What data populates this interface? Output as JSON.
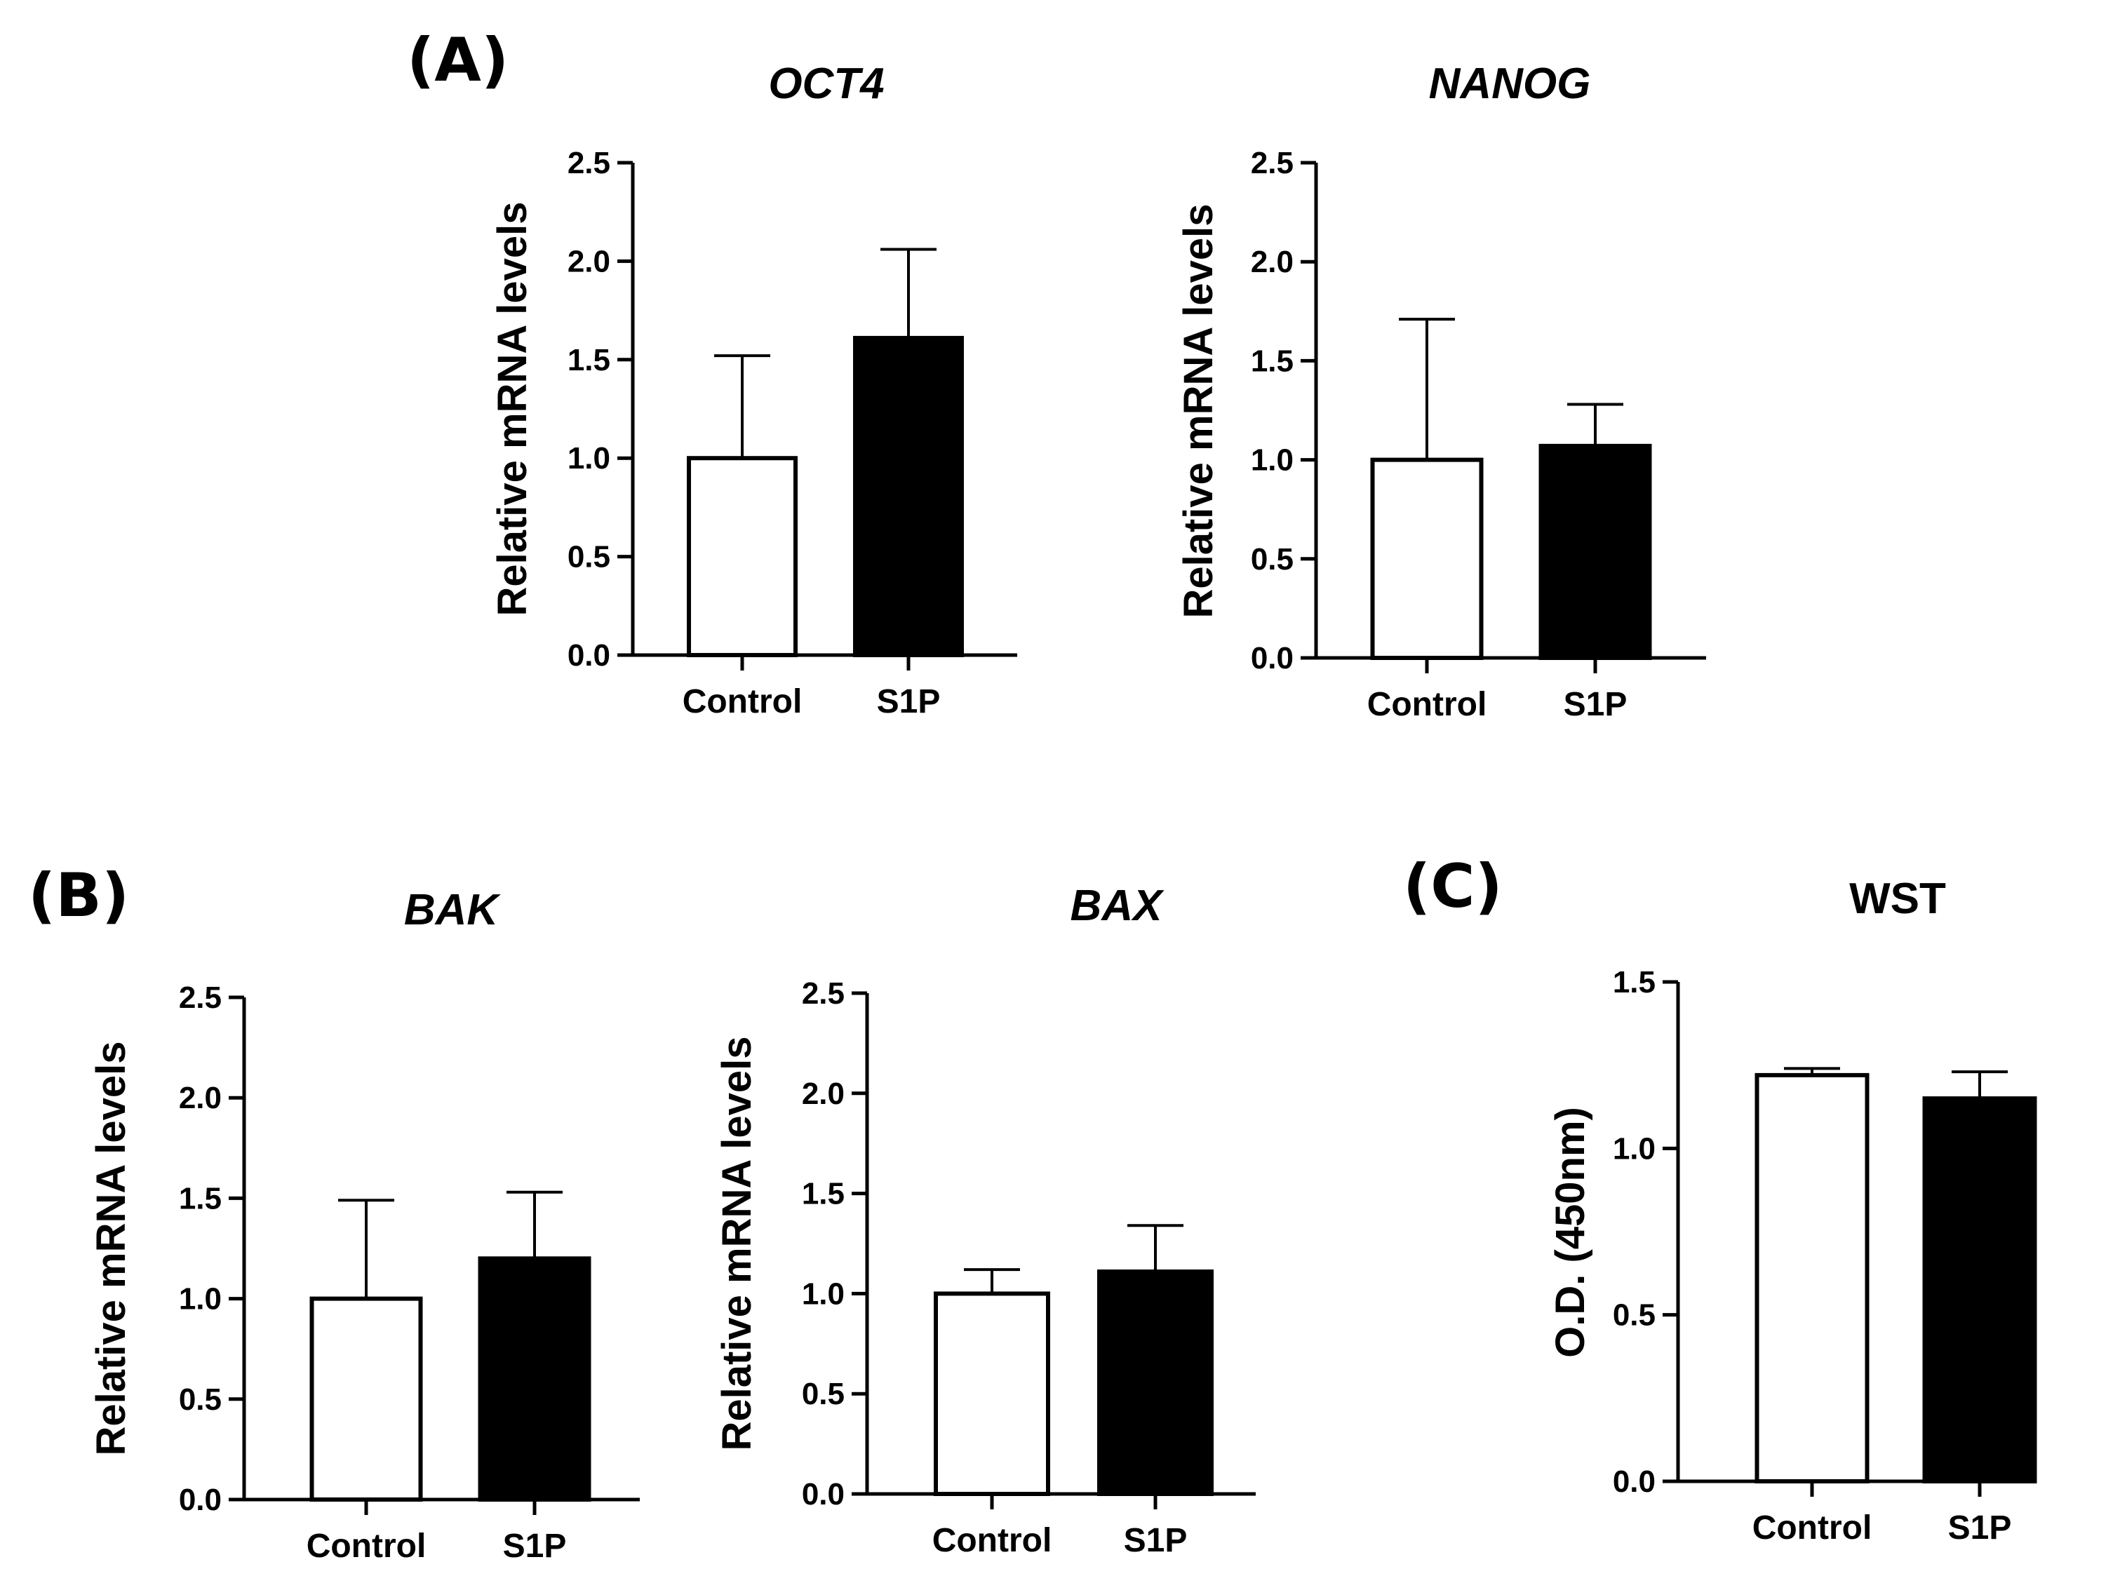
{
  "chart_data": [
    {
      "panel_label": "(A)",
      "type": "bar",
      "title": "OCT4",
      "title_style": "italic",
      "ylabel": "Relative mRNA levels",
      "xlabel": "",
      "categories": [
        "Control",
        "S1P"
      ],
      "values": [
        1.0,
        1.61
      ],
      "errors": [
        0.52,
        0.45
      ],
      "bar_fill": [
        "#ffffff",
        "#000000"
      ],
      "ylim": [
        0,
        2.5
      ],
      "yticks": [
        "0.0",
        "0.5",
        "1.0",
        "1.5",
        "2.0",
        "2.5"
      ],
      "grid": false
    },
    {
      "panel_label": "",
      "type": "bar",
      "title": "NANOG",
      "title_style": "italic",
      "ylabel": "Relative mRNA levels",
      "xlabel": "",
      "categories": [
        "Control",
        "S1P"
      ],
      "values": [
        1.0,
        1.07
      ],
      "errors": [
        0.71,
        0.21
      ],
      "bar_fill": [
        "#ffffff",
        "#000000"
      ],
      "ylim": [
        0,
        2.5
      ],
      "yticks": [
        "0.0",
        "0.5",
        "1.0",
        "1.5",
        "2.0",
        "2.5"
      ],
      "grid": false
    },
    {
      "panel_label": "(B)",
      "type": "bar",
      "title": "BAK",
      "title_style": "italic",
      "ylabel": "Relative mRNA levels",
      "xlabel": "",
      "categories": [
        "Control",
        "S1P"
      ],
      "values": [
        1.0,
        1.2
      ],
      "errors": [
        0.49,
        0.33
      ],
      "bar_fill": [
        "#ffffff",
        "#000000"
      ],
      "ylim": [
        0,
        2.5
      ],
      "yticks": [
        "0.0",
        "0.5",
        "1.0",
        "1.5",
        "2.0",
        "2.5"
      ],
      "grid": false
    },
    {
      "panel_label": "",
      "type": "bar",
      "title": "BAX",
      "title_style": "italic",
      "ylabel": "Relative mRNA levels",
      "xlabel": "",
      "categories": [
        "Control",
        "S1P"
      ],
      "values": [
        1.0,
        1.11
      ],
      "errors": [
        0.12,
        0.23
      ],
      "bar_fill": [
        "#ffffff",
        "#000000"
      ],
      "ylim": [
        0,
        2.5
      ],
      "yticks": [
        "0.0",
        "0.5",
        "1.0",
        "1.5",
        "2.0",
        "2.5"
      ],
      "grid": false
    },
    {
      "panel_label": "(C)",
      "type": "bar",
      "title": "WST",
      "title_style": "normal",
      "ylabel": "O.D. (450nm)",
      "xlabel": "",
      "categories": [
        "Control",
        "S1P"
      ],
      "values": [
        1.22,
        1.15
      ],
      "errors": [
        0.02,
        0.08
      ],
      "bar_fill": [
        "#ffffff",
        "#000000"
      ],
      "ylim": [
        0,
        1.5
      ],
      "yticks": [
        "0.0",
        "0.5",
        "1.0",
        "1.5"
      ],
      "grid": false
    }
  ]
}
